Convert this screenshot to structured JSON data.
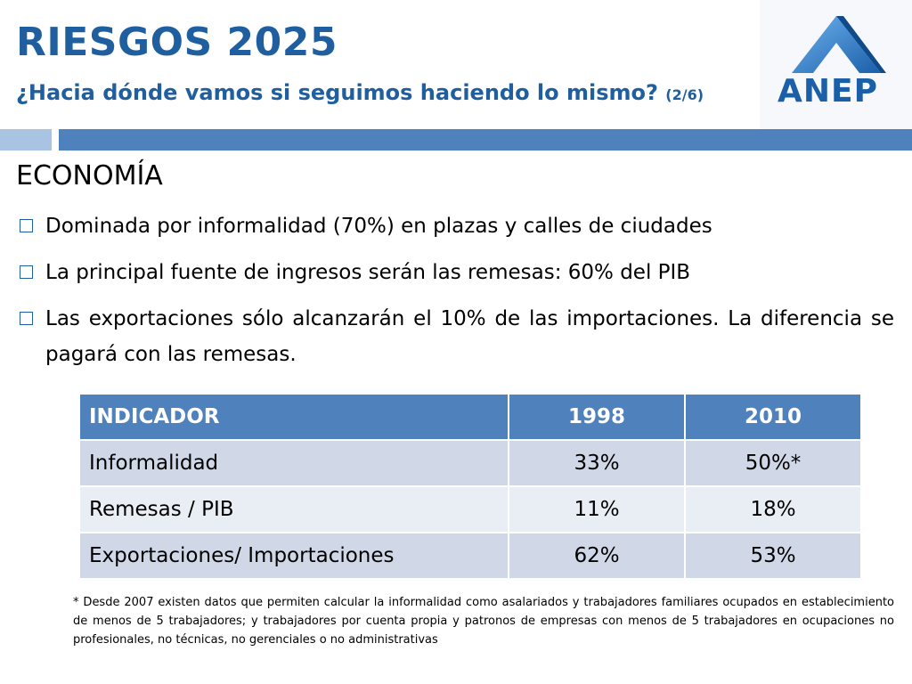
{
  "header": {
    "title": "RIESGOS 2025",
    "subtitle": "¿Hacia dónde vamos si seguimos haciendo lo mismo?",
    "page_indicator": "(2/6)",
    "logo_text": "ANEP"
  },
  "section_title": "ECONOMÍA",
  "bullets": [
    "Dominada por informalidad (70%) en plazas y calles de ciudades",
    "La principal fuente de ingresos serán las remesas: 60% del PIB",
    "Las exportaciones sólo alcanzarán el 10% de las importaciones. La diferencia se pagará con las remesas."
  ],
  "table": {
    "headers": [
      "INDICADOR",
      "1998",
      "2010"
    ],
    "rows": [
      [
        "Informalidad",
        "33%",
        "50%*"
      ],
      [
        "Remesas / PIB",
        "11%",
        "18%"
      ],
      [
        "Exportaciones/ Importaciones",
        "62%",
        "53%"
      ]
    ]
  },
  "footnote": "* Desde 2007 existen datos que permiten calcular la informalidad  como  asalariados y trabajadores familiares ocupados en establecimiento de menos de 5 trabajadores; y trabajadores por cuenta propia y patronos de empresas con menos de 5 trabajadores en ocupaciones no profesionales, no técnicas, no gerenciales o no administrativas",
  "colors": {
    "title": "#1f5f9f",
    "header_bar": "#4f81bd",
    "accent_bar": "#a9c4e2",
    "row_odd": "#d0d8e8",
    "row_even": "#e9edf4"
  }
}
